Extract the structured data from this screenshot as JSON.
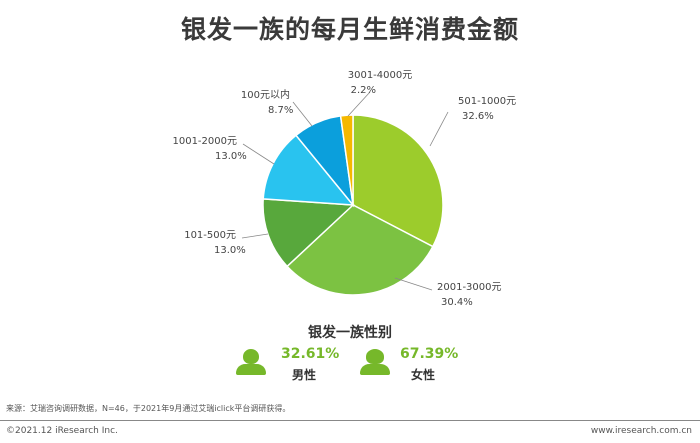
{
  "page": {
    "title": "银发一族的每月生鲜消费金额",
    "gender_title": "银发一族性别",
    "male_pct": "32.61%",
    "male_label": "男性",
    "female_pct": "67.39%",
    "female_label": "女性",
    "source": "来源：艾瑞咨询调研数据，N=46，于2021年9月通过艾瑞iclick平台调研获得。",
    "copyright": "©2021.12 iResearch Inc.",
    "website": "www.iresearch.com.cn"
  },
  "chart_data": {
    "type": "pie",
    "title": "银发一族的每月生鲜消费金额",
    "slices": [
      {
        "label": "501-1000元",
        "value": 32.6,
        "display": "32.6%",
        "color": "#9ccc2c"
      },
      {
        "label": "2001-3000元",
        "value": 30.4,
        "display": "30.4%",
        "color": "#7cc242"
      },
      {
        "label": "101-500元",
        "value": 13.0,
        "display": "13.0%",
        "color": "#58a83c"
      },
      {
        "label": "1001-2000元",
        "value": 13.0,
        "display": "13.0%",
        "color": "#29c3ef"
      },
      {
        "label": "100元以内",
        "value": 8.7,
        "display": "8.7%",
        "color": "#0b9fdc"
      },
      {
        "label": "3001-4000元",
        "value": 2.2,
        "display": "2.2%",
        "color": "#f5b800"
      }
    ],
    "start": "12 o'clock",
    "direction": "clockwise"
  },
  "colors": {
    "accent_green": "#76b82a"
  }
}
